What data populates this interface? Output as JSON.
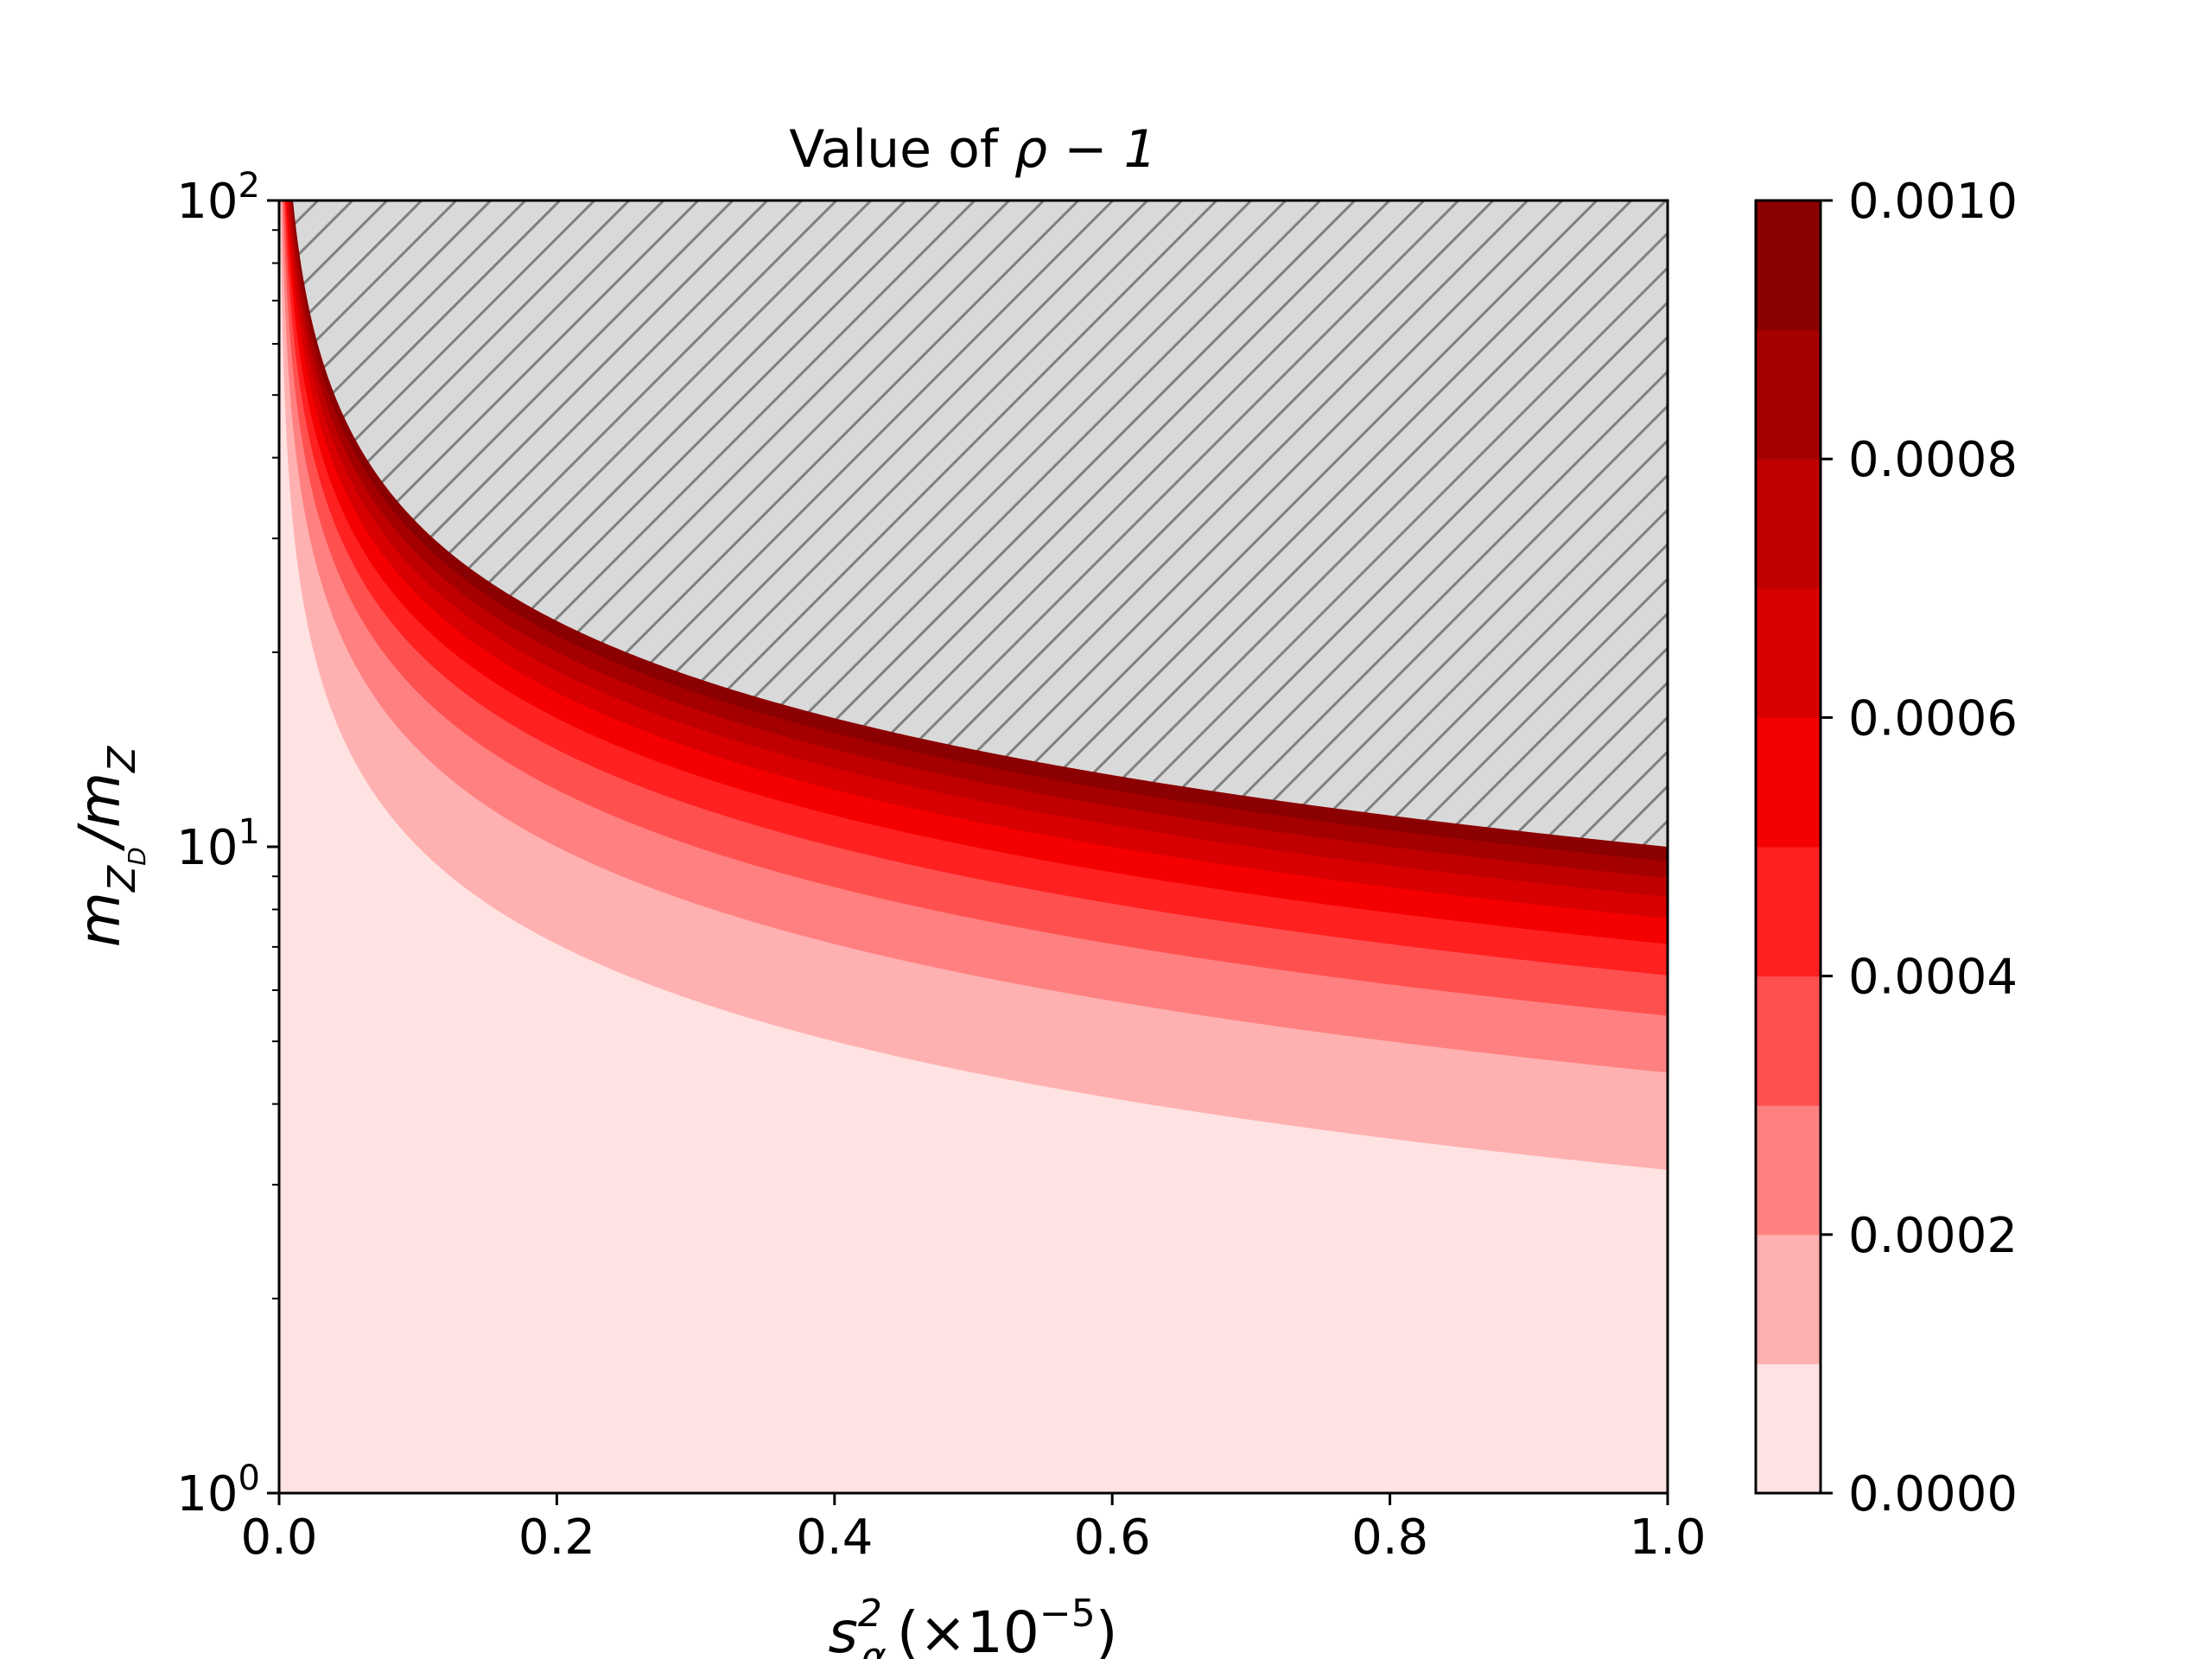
{
  "chart_data": {
    "type": "contourf",
    "title_prefix": "Value of ",
    "title_math": "ρ − 1",
    "xlabel": {
      "base": "s",
      "sub": "α",
      "sup": "2",
      "rest": "(×10",
      "rest_sup": "−5",
      "rest_end": ")"
    },
    "ylabel": {
      "base": "m",
      "sub": "Z",
      "subsub": "D",
      "mid": "/m",
      "sub2": "Z"
    },
    "xlim": [
      0.0,
      1.0
    ],
    "ylim": [
      1,
      100
    ],
    "yscale": "log",
    "x_ticks": [
      "0.0",
      "0.2",
      "0.4",
      "0.6",
      "0.8",
      "1.0"
    ],
    "x_tick_values": [
      0.0,
      0.2,
      0.4,
      0.6,
      0.8,
      1.0
    ],
    "y_ticks": [
      {
        "base": "10",
        "exp": "0",
        "value": 1
      },
      {
        "base": "10",
        "exp": "1",
        "value": 10
      },
      {
        "base": "10",
        "exp": "2",
        "value": 100
      }
    ],
    "contour_levels": [
      0.0,
      0.0001,
      0.0002,
      0.0003,
      0.0004,
      0.0005,
      0.0006,
      0.0007,
      0.0008,
      0.0009,
      0.001
    ],
    "level_colors": [
      "#ffe2e2",
      "#ffb0b0",
      "#ff8080",
      "#ff5050",
      "#ff2020",
      "#f50000",
      "#d80000",
      "#c00000",
      "#a50000",
      "#8b0000"
    ],
    "excluded_region": {
      "fill": "#d9d9d9",
      "hatch": "#808080",
      "boundary_level": 0.001
    },
    "colorbar": {
      "min": 0.0,
      "max": 0.001,
      "tick_values": [
        0.0,
        0.0002,
        0.0004,
        0.0006,
        0.0008,
        0.001
      ],
      "tick_labels": [
        "0.0000",
        "0.0002",
        "0.0004",
        "0.0006",
        "0.0008",
        "0.0010"
      ]
    }
  }
}
